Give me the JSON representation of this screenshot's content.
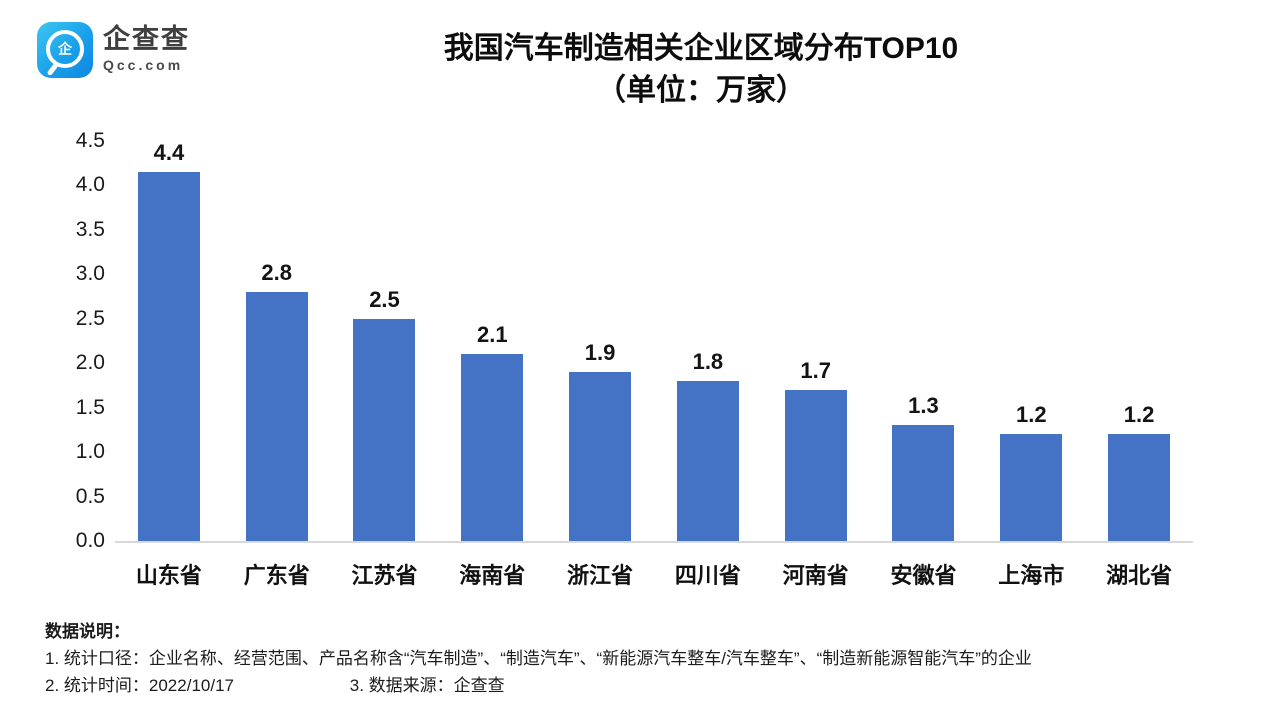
{
  "header": {
    "logo": {
      "name": "企查查",
      "subtitle": "Qcc.com",
      "icon_char": "企"
    },
    "title_line1": "我国汽车制造相关企业区域分布TOP10",
    "title_line2": "（单位：万家）"
  },
  "chart_data": {
    "type": "bar",
    "title": "我国汽车制造相关企业区域分布TOP10",
    "subtitle": "（单位：万家）",
    "categories": [
      "山东省",
      "广东省",
      "江苏省",
      "海南省",
      "浙江省",
      "四川省",
      "河南省",
      "安徽省",
      "上海市",
      "湖北省"
    ],
    "values": [
      4.4,
      2.8,
      2.5,
      2.1,
      1.9,
      1.8,
      1.7,
      1.3,
      1.2,
      1.2
    ],
    "value_labels": [
      "4.4",
      "2.8",
      "2.5",
      "2.1",
      "1.9",
      "1.8",
      "1.7",
      "1.3",
      "1.2",
      "1.2"
    ],
    "xlabel": "",
    "ylabel": "",
    "ylim": [
      0,
      4.5
    ],
    "ytick_labels": [
      "0.0",
      "0.5",
      "1.0",
      "1.5",
      "2.0",
      "2.5",
      "3.0",
      "3.5",
      "4.0",
      "4.5"
    ],
    "grid": false,
    "legend": null,
    "bar_color": "#4472C4",
    "axis_line_color": "#d9d9d9"
  },
  "footer": {
    "heading": "数据说明：",
    "note1": "1. 统计口径：企业名称、经营范围、产品名称含“汽车制造”、“制造汽车”、“新能源汽车整车/汽车整车”、“制造新能源智能汽车”的企业",
    "note2a": "2. 统计时间：2022/10/17",
    "note2b": "3. 数据来源：企查查"
  }
}
